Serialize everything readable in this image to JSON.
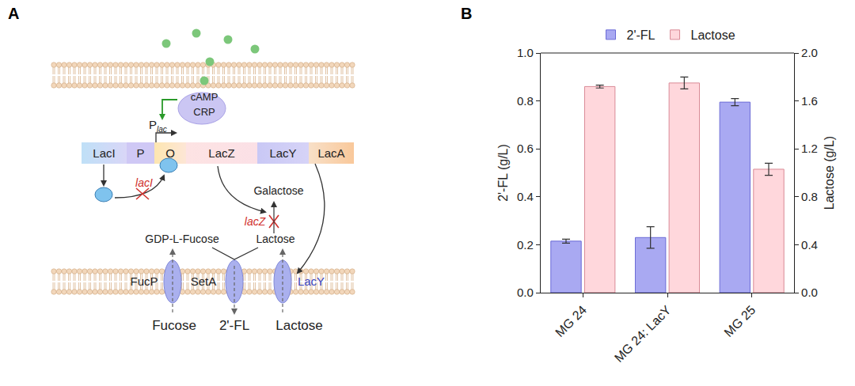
{
  "panel_labels": [
    "A",
    "B"
  ],
  "diagram": {
    "signal": {
      "top": "cAMP",
      "bottom": "CRP"
    },
    "promoter_label": {
      "text": "P",
      "subscript": "lac"
    },
    "genes": [
      "LacI",
      "P",
      "O",
      "LacZ",
      "LacY",
      "LacA"
    ],
    "deletions": [
      "lacI",
      "lacZ"
    ],
    "metabolites": {
      "product_of_lacZ": "Galactose",
      "donor": "GDP-L-Fucose",
      "acceptor": "Lactose"
    },
    "transporters": [
      "FucP",
      "SetA",
      "LacY"
    ],
    "outside": [
      "Fucose",
      "2'-FL",
      "Lactose"
    ]
  },
  "chart_data": {
    "type": "bar",
    "categories": [
      "MG 24",
      "MG 24: LacY",
      "MG 25"
    ],
    "series": [
      {
        "name": "2'-FL",
        "color": "#a9a9f2",
        "axis": "y",
        "values": [
          0.215,
          0.23,
          0.795
        ],
        "error": [
          0.008,
          0.045,
          0.015
        ]
      },
      {
        "name": "Lactose",
        "color": "#ffd7dc",
        "axis": "y2",
        "values": [
          1.72,
          1.75,
          1.03
        ],
        "error": [
          0.012,
          0.05,
          0.05
        ]
      }
    ],
    "y_label": "2'-FL (g/L)",
    "y2_label": "Lactose (g/L)",
    "ylim": [
      0,
      1.0
    ],
    "yticks": [
      {
        "value": 0,
        "label": "0.0"
      },
      {
        "value": 0.2,
        "label": "0.2"
      },
      {
        "value": 0.4,
        "label": "0.4"
      },
      {
        "value": 0.6,
        "label": "0.6"
      },
      {
        "value": 0.8,
        "label": "0.8"
      },
      {
        "value": 1.0,
        "label": "1.0"
      }
    ],
    "y2lim": [
      0,
      2.0
    ],
    "y2ticks": [
      {
        "value": 0,
        "label": "0.0"
      },
      {
        "value": 0.4,
        "label": "0.4"
      },
      {
        "value": 0.8,
        "label": "0.8"
      },
      {
        "value": 1.2,
        "label": "1.2"
      },
      {
        "value": 1.6,
        "label": "1.6"
      },
      {
        "value": 2.0,
        "label": "2.0"
      }
    ],
    "legend": "top",
    "grid": false
  }
}
